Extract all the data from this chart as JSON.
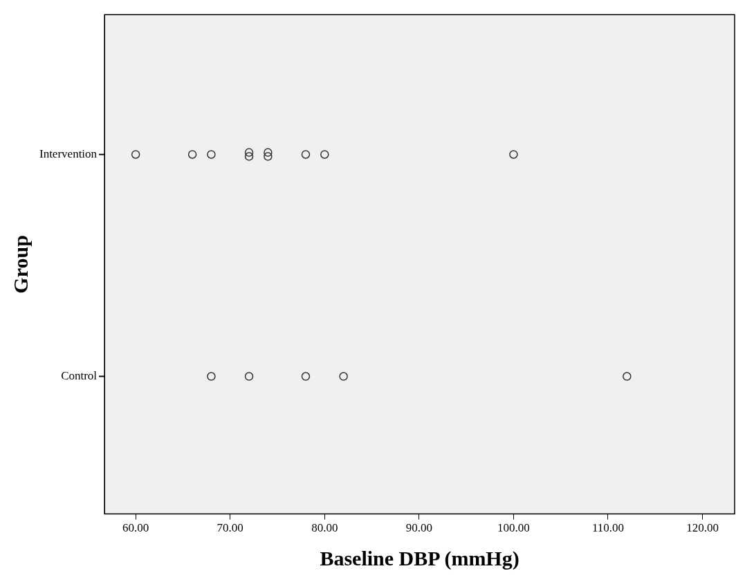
{
  "chart_data": {
    "type": "scatter",
    "orientation": "horizontal",
    "xlabel": "Baseline DBP (mmHg)",
    "ylabel": "Group",
    "categories": [
      "Intervention",
      "Control"
    ],
    "marker": "circle",
    "grid": false,
    "legend": false,
    "xlim": [
      56.7,
      123.4
    ],
    "xticks": [
      {
        "value": 60,
        "label": "60.00"
      },
      {
        "value": 70,
        "label": "70.00"
      },
      {
        "value": 80,
        "label": "80.00"
      },
      {
        "value": 90,
        "label": "90.00"
      },
      {
        "value": 100,
        "label": "100.00"
      },
      {
        "value": 110,
        "label": "110.00"
      },
      {
        "value": 120,
        "label": "120.00"
      }
    ],
    "series": [
      {
        "color": "#333333",
        "values": [
          60,
          68
        ]
      },
      {
        "color": "#333333",
        "values": [
          66,
          72
        ]
      },
      {
        "color": "#333333",
        "values": [
          68,
          78
        ]
      },
      {
        "color": "#333333",
        "values": [
          72,
          82
        ]
      },
      {
        "color": "#333333",
        "values": [
          72,
          112
        ]
      },
      {
        "color": "#333333",
        "values": [
          74,
          null
        ]
      },
      {
        "color": "#333333",
        "values": [
          74,
          null
        ]
      },
      {
        "color": "#333333",
        "values": [
          78,
          null
        ]
      },
      {
        "color": "#333333",
        "values": [
          80,
          null
        ]
      },
      {
        "color": "#333333",
        "values": [
          100,
          null
        ]
      }
    ]
  }
}
